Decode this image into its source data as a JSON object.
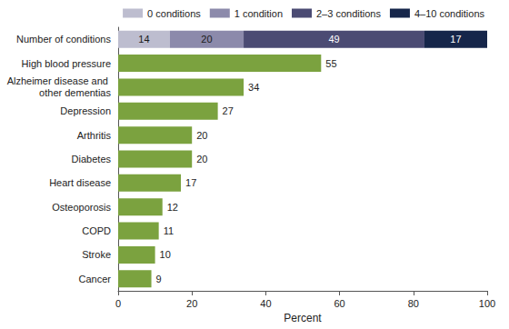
{
  "chart_data": {
    "type": "bar",
    "orientation": "horizontal",
    "stacked": true,
    "data_labels": true,
    "grid": false,
    "legend": "top",
    "categories": [
      "Number of conditions",
      "High blood pressure",
      "Alzheimer disease and other dementias",
      "Depression",
      "Arthritis",
      "Diabetes",
      "Heart disease",
      "Osteoporosis",
      "COPD",
      "Stroke",
      "Cancer"
    ],
    "series": [
      {
        "name": "0 conditions",
        "color": "#bdbdcf",
        "values": [
          14,
          null,
          null,
          null,
          null,
          null,
          null,
          null,
          null,
          null,
          null
        ]
      },
      {
        "name": "1 condition",
        "color": "#8c8aab",
        "values": [
          20,
          null,
          null,
          null,
          null,
          null,
          null,
          null,
          null,
          null,
          null
        ]
      },
      {
        "name": "2–3 conditions",
        "color": "#4b4b73",
        "values": [
          49,
          null,
          null,
          null,
          null,
          null,
          null,
          null,
          null,
          null,
          null
        ]
      },
      {
        "name": "4–10 conditions",
        "color": "#16264a",
        "values": [
          17,
          null,
          null,
          null,
          null,
          null,
          null,
          null,
          null,
          null,
          null
        ]
      },
      {
        "color": "#7ba23f",
        "values": [
          null,
          55,
          34,
          27,
          20,
          20,
          17,
          12,
          11,
          10,
          9
        ]
      }
    ],
    "xlabel": "Percent",
    "xlim": [
      0,
      100
    ],
    "xticks": [
      0,
      20,
      40,
      60,
      80,
      100
    ]
  }
}
